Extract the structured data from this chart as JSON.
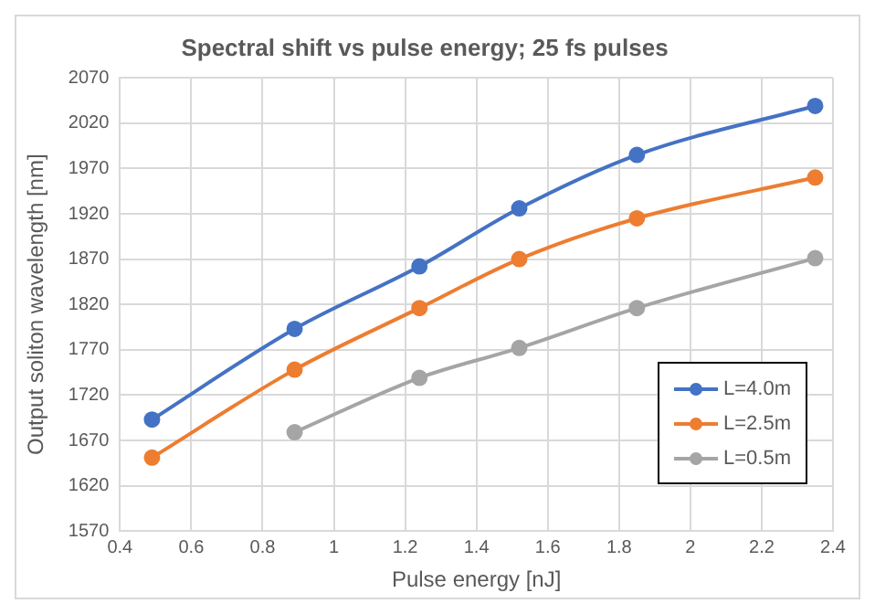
{
  "chart_data": {
    "type": "line",
    "title": "Spectral shift vs pulse energy; 25 fs pulses",
    "xlabel": "Pulse energy [nJ]",
    "ylabel": "Output soliton wavelength [nm]",
    "xlim": [
      0.4,
      2.4
    ],
    "xticks": [
      0.4,
      0.6,
      0.8,
      1,
      1.2,
      1.4,
      1.6,
      1.8,
      2,
      2.2,
      2.4
    ],
    "ylim": [
      1570,
      2070
    ],
    "yticks": [
      1570,
      1620,
      1670,
      1720,
      1770,
      1820,
      1870,
      1920,
      1970,
      2020,
      2070
    ],
    "grid": true,
    "legend": "bottom right",
    "marker": "circle",
    "line_style": "solid",
    "series": [
      {
        "name": "L=4.0m",
        "color": "#4472c4",
        "x": [
          0.49,
          0.89,
          1.24,
          1.52,
          1.85,
          2.35
        ],
        "values": [
          1693,
          1793,
          1862,
          1926,
          1985,
          2039
        ]
      },
      {
        "name": "L=2.5m",
        "color": "#ed7d31",
        "x": [
          0.49,
          0.89,
          1.24,
          1.52,
          1.85,
          2.35
        ],
        "values": [
          1651,
          1748,
          1816,
          1870,
          1915,
          1960
        ]
      },
      {
        "name": "L=0.5m",
        "color": "#a5a5a5",
        "x": [
          0.89,
          1.24,
          1.52,
          1.85,
          2.35
        ],
        "values": [
          1679,
          1739,
          1772,
          1816,
          1871
        ]
      }
    ]
  }
}
